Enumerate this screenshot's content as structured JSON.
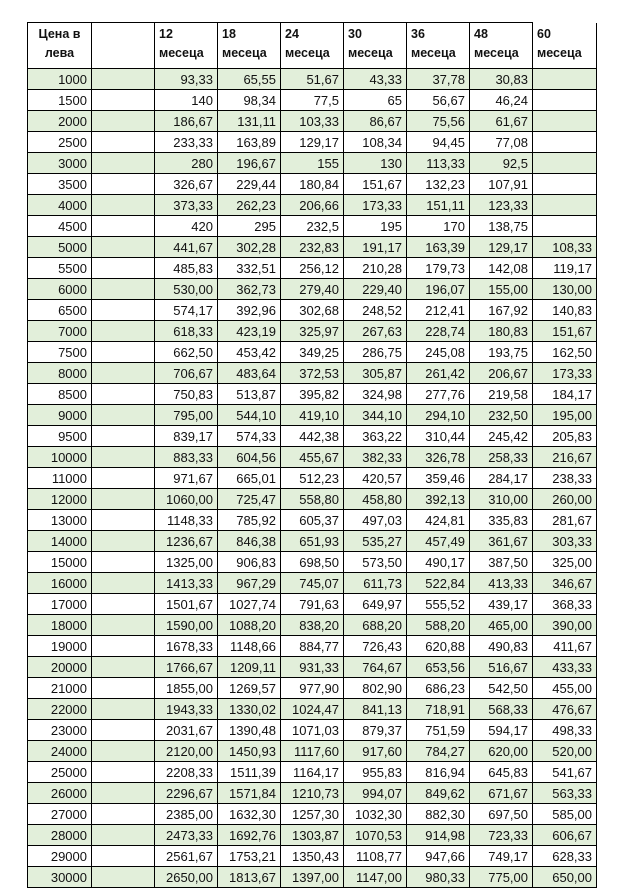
{
  "header": {
    "price": "Цена в лева",
    "blank": "",
    "months": [
      "12 месеца",
      "18 месеца",
      "24 месеца",
      "30 месеца",
      "36 месеца",
      "48 месеца",
      "60 месеца"
    ]
  },
  "colors": {
    "stripe": "#e2efda",
    "border": "#000000"
  },
  "rows": [
    [
      "1000",
      "93,33",
      "65,55",
      "51,67",
      "43,33",
      "37,78",
      "30,83",
      ""
    ],
    [
      "1500",
      "140",
      "98,34",
      "77,5",
      "65",
      "56,67",
      "46,24",
      ""
    ],
    [
      "2000",
      "186,67",
      "131,11",
      "103,33",
      "86,67",
      "75,56",
      "61,67",
      ""
    ],
    [
      "2500",
      "233,33",
      "163,89",
      "129,17",
      "108,34",
      "94,45",
      "77,08",
      ""
    ],
    [
      "3000",
      "280",
      "196,67",
      "155",
      "130",
      "113,33",
      "92,5",
      ""
    ],
    [
      "3500",
      "326,67",
      "229,44",
      "180,84",
      "151,67",
      "132,23",
      "107,91",
      ""
    ],
    [
      "4000",
      "373,33",
      "262,23",
      "206,66",
      "173,33",
      "151,11",
      "123,33",
      ""
    ],
    [
      "4500",
      "420",
      "295",
      "232,5",
      "195",
      "170",
      "138,75",
      ""
    ],
    [
      "5000",
      "441,67",
      "302,28",
      "232,83",
      "191,17",
      "163,39",
      "129,17",
      "108,33"
    ],
    [
      "5500",
      "485,83",
      "332,51",
      "256,12",
      "210,28",
      "179,73",
      "142,08",
      "119,17"
    ],
    [
      "6000",
      "530,00",
      "362,73",
      "279,40",
      "229,40",
      "196,07",
      "155,00",
      "130,00"
    ],
    [
      "6500",
      "574,17",
      "392,96",
      "302,68",
      "248,52",
      "212,41",
      "167,92",
      "140,83"
    ],
    [
      "7000",
      "618,33",
      "423,19",
      "325,97",
      "267,63",
      "228,74",
      "180,83",
      "151,67"
    ],
    [
      "7500",
      "662,50",
      "453,42",
      "349,25",
      "286,75",
      "245,08",
      "193,75",
      "162,50"
    ],
    [
      "8000",
      "706,67",
      "483,64",
      "372,53",
      "305,87",
      "261,42",
      "206,67",
      "173,33"
    ],
    [
      "8500",
      "750,83",
      "513,87",
      "395,82",
      "324,98",
      "277,76",
      "219,58",
      "184,17"
    ],
    [
      "9000",
      "795,00",
      "544,10",
      "419,10",
      "344,10",
      "294,10",
      "232,50",
      "195,00"
    ],
    [
      "9500",
      "839,17",
      "574,33",
      "442,38",
      "363,22",
      "310,44",
      "245,42",
      "205,83"
    ],
    [
      "10000",
      "883,33",
      "604,56",
      "455,67",
      "382,33",
      "326,78",
      "258,33",
      "216,67"
    ],
    [
      "11000",
      "971,67",
      "665,01",
      "512,23",
      "420,57",
      "359,46",
      "284,17",
      "238,33"
    ],
    [
      "12000",
      "1060,00",
      "725,47",
      "558,80",
      "458,80",
      "392,13",
      "310,00",
      "260,00"
    ],
    [
      "13000",
      "1148,33",
      "785,92",
      "605,37",
      "497,03",
      "424,81",
      "335,83",
      "281,67"
    ],
    [
      "14000",
      "1236,67",
      "846,38",
      "651,93",
      "535,27",
      "457,49",
      "361,67",
      "303,33"
    ],
    [
      "15000",
      "1325,00",
      "906,83",
      "698,50",
      "573,50",
      "490,17",
      "387,50",
      "325,00"
    ],
    [
      "16000",
      "1413,33",
      "967,29",
      "745,07",
      "611,73",
      "522,84",
      "413,33",
      "346,67"
    ],
    [
      "17000",
      "1501,67",
      "1027,74",
      "791,63",
      "649,97",
      "555,52",
      "439,17",
      "368,33"
    ],
    [
      "18000",
      "1590,00",
      "1088,20",
      "838,20",
      "688,20",
      "588,20",
      "465,00",
      "390,00"
    ],
    [
      "19000",
      "1678,33",
      "1148,66",
      "884,77",
      "726,43",
      "620,88",
      "490,83",
      "411,67"
    ],
    [
      "20000",
      "1766,67",
      "1209,11",
      "931,33",
      "764,67",
      "653,56",
      "516,67",
      "433,33"
    ],
    [
      "21000",
      "1855,00",
      "1269,57",
      "977,90",
      "802,90",
      "686,23",
      "542,50",
      "455,00"
    ],
    [
      "22000",
      "1943,33",
      "1330,02",
      "1024,47",
      "841,13",
      "718,91",
      "568,33",
      "476,67"
    ],
    [
      "23000",
      "2031,67",
      "1390,48",
      "1071,03",
      "879,37",
      "751,59",
      "594,17",
      "498,33"
    ],
    [
      "24000",
      "2120,00",
      "1450,93",
      "1117,60",
      "917,60",
      "784,27",
      "620,00",
      "520,00"
    ],
    [
      "25000",
      "2208,33",
      "1511,39",
      "1164,17",
      "955,83",
      "816,94",
      "645,83",
      "541,67"
    ],
    [
      "26000",
      "2296,67",
      "1571,84",
      "1210,73",
      "994,07",
      "849,62",
      "671,67",
      "563,33"
    ],
    [
      "27000",
      "2385,00",
      "1632,30",
      "1257,30",
      "1032,30",
      "882,30",
      "697,50",
      "585,00"
    ],
    [
      "28000",
      "2473,33",
      "1692,76",
      "1303,87",
      "1070,53",
      "914,98",
      "723,33",
      "606,67"
    ],
    [
      "29000",
      "2561,67",
      "1753,21",
      "1350,43",
      "1108,77",
      "947,66",
      "749,17",
      "628,33"
    ],
    [
      "30000",
      "2650,00",
      "1813,67",
      "1397,00",
      "1147,00",
      "980,33",
      "775,00",
      "650,00"
    ]
  ]
}
